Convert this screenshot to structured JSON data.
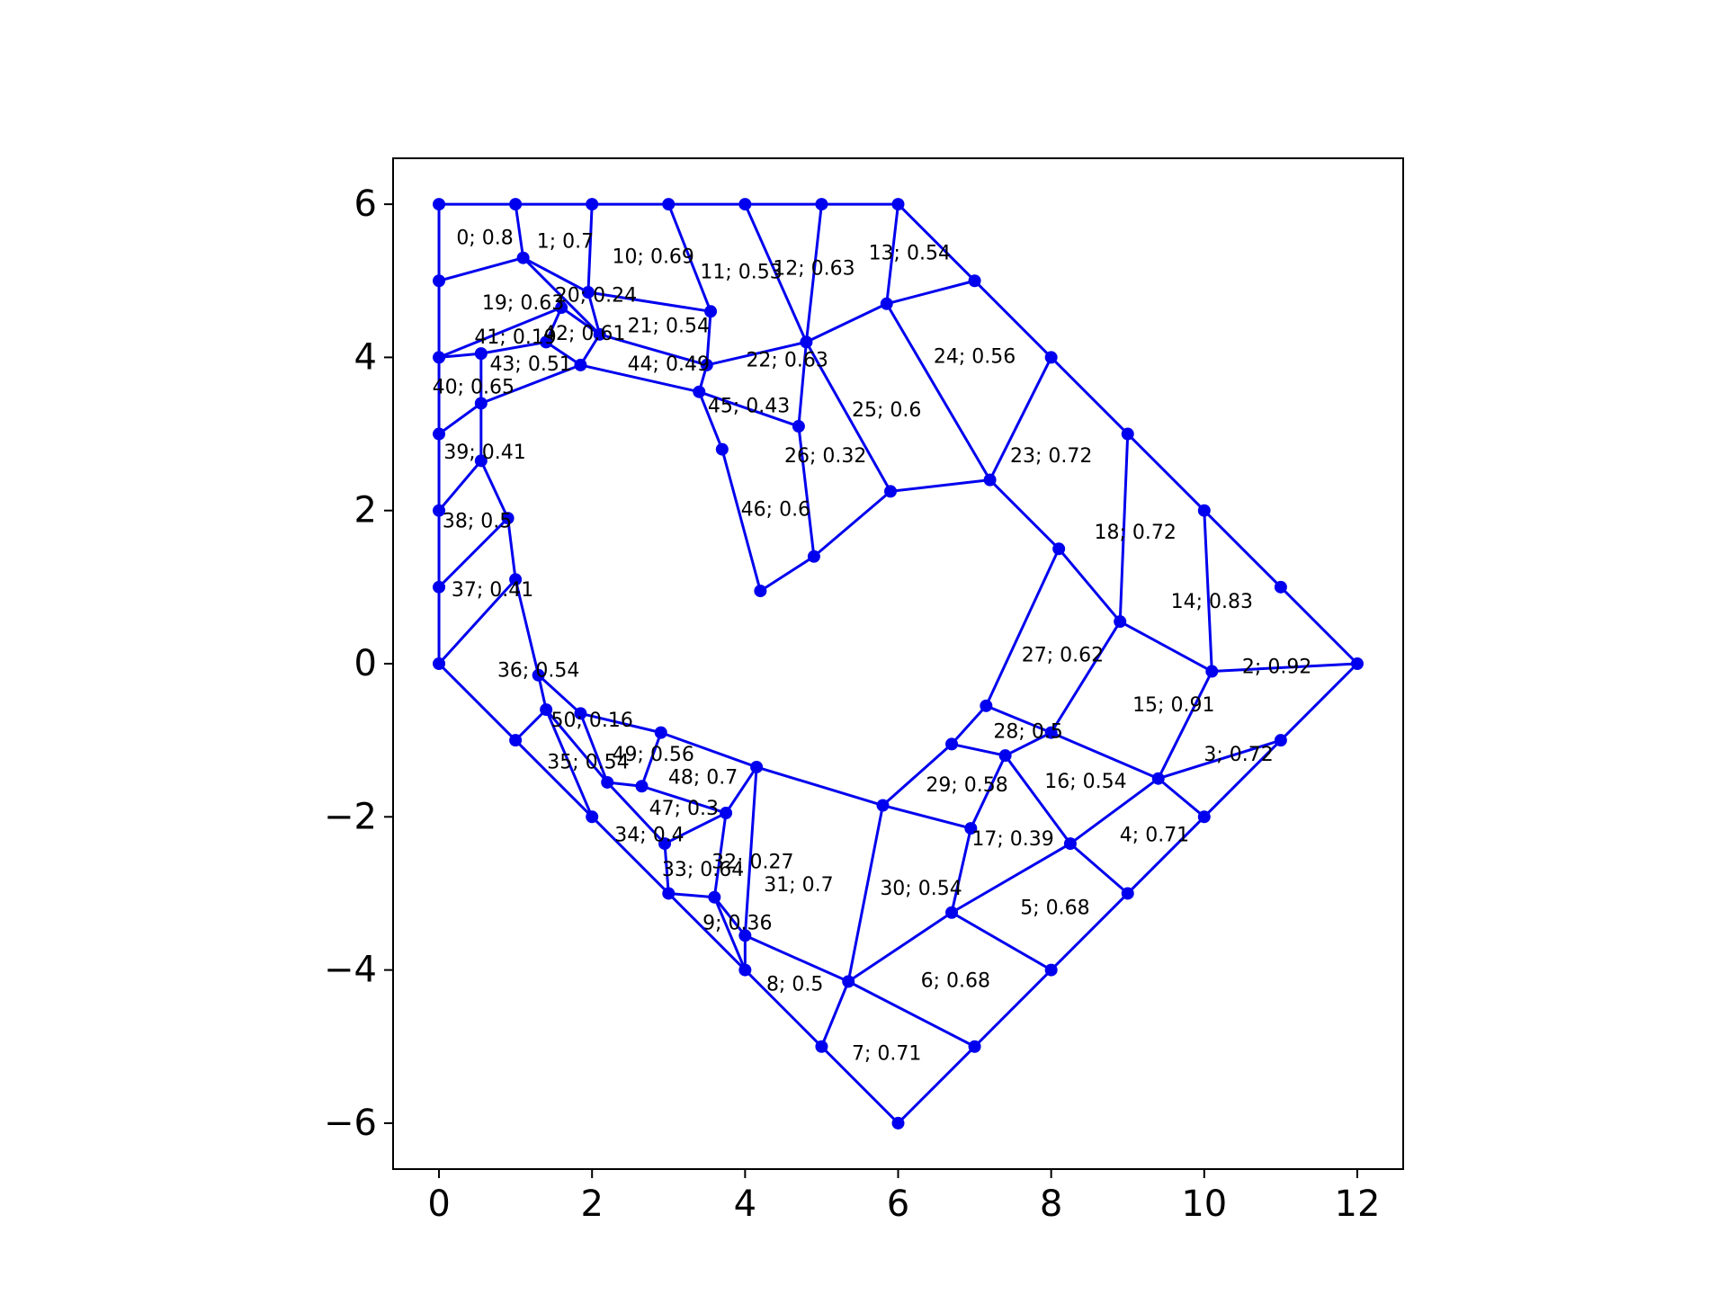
{
  "chart_data": {
    "type": "mesh",
    "title": "",
    "xlabel": "",
    "ylabel": "",
    "xlim": [
      -0.6,
      12.6
    ],
    "ylim": [
      -6.6,
      6.6
    ],
    "xticks": [
      {
        "value": 0,
        "label": "0"
      },
      {
        "value": 2,
        "label": "2"
      },
      {
        "value": 4,
        "label": "4"
      },
      {
        "value": 6,
        "label": "6"
      },
      {
        "value": 8,
        "label": "8"
      },
      {
        "value": 10,
        "label": "10"
      },
      {
        "value": 12,
        "label": "12"
      }
    ],
    "yticks": [
      {
        "value": -6,
        "label": "−6"
      },
      {
        "value": -4,
        "label": "−4"
      },
      {
        "value": -2,
        "label": "−2"
      },
      {
        "value": 0,
        "label": "0"
      },
      {
        "value": 2,
        "label": "2"
      },
      {
        "value": 4,
        "label": "4"
      },
      {
        "value": 6,
        "label": "6"
      }
    ],
    "grid": false,
    "colors": {
      "mesh": "#0000ee",
      "frame": "#000000",
      "text": "#000000"
    },
    "nodes": {
      "a1": [
        0,
        6
      ],
      "a2": [
        1,
        6
      ],
      "a3": [
        2,
        6
      ],
      "a4": [
        3,
        6
      ],
      "a5": [
        4,
        6
      ],
      "a6": [
        5,
        6
      ],
      "a7": [
        6,
        6
      ],
      "b1": [
        0,
        5
      ],
      "b2": [
        1.1,
        5.3
      ],
      "b3": [
        1.95,
        4.85
      ],
      "b4": [
        3.55,
        4.6
      ],
      "b5": [
        5.85,
        4.7
      ],
      "b6": [
        7,
        5
      ],
      "c1": [
        0,
        4
      ],
      "c2": [
        0.55,
        4.05
      ],
      "c3": [
        1.6,
        4.65
      ],
      "c4": [
        1.4,
        4.2
      ],
      "c5": [
        2.1,
        4.3
      ],
      "c6": [
        1.85,
        3.9
      ],
      "c7": [
        3.4,
        3.55
      ],
      "c8": [
        3.5,
        3.9
      ],
      "c9": [
        4.8,
        4.2
      ],
      "c10": [
        8,
        4
      ],
      "d1": [
        0,
        3
      ],
      "d2": [
        0.55,
        3.4
      ],
      "d3": [
        0.55,
        2.65
      ],
      "d4": [
        0,
        2
      ],
      "d5": [
        0.9,
        1.9
      ],
      "d6": [
        0,
        1
      ],
      "d7": [
        1,
        1.1
      ],
      "e1": [
        3.7,
        2.8
      ],
      "e2": [
        4.7,
        3.1
      ],
      "e3": [
        5.9,
        2.25
      ],
      "e4": [
        7.2,
        2.4
      ],
      "e5": [
        9,
        3
      ],
      "e6": [
        10,
        2
      ],
      "e7": [
        4.2,
        0.95
      ],
      "e8": [
        4.9,
        1.4
      ],
      "e9": [
        8.1,
        1.5
      ],
      "e10": [
        8.9,
        0.55
      ],
      "e11": [
        11,
        1
      ],
      "e12": [
        12,
        0
      ],
      "f1": [
        0,
        0
      ],
      "f2": [
        1.3,
        -0.15
      ],
      "f3": [
        10.1,
        -0.1
      ],
      "f4": [
        7.15,
        -0.55
      ],
      "g1": [
        1.4,
        -0.6
      ],
      "g2": [
        1.85,
        -0.65
      ],
      "g3": [
        2.9,
        -0.9
      ],
      "g4": [
        1,
        -1
      ],
      "g5": [
        6.7,
        -1.05
      ],
      "g6": [
        8,
        -0.9
      ],
      "g7": [
        7.4,
        -1.2
      ],
      "g8": [
        11,
        -1
      ],
      "g9": [
        4.15,
        -1.35
      ],
      "g10": [
        9.4,
        -1.5
      ],
      "h1": [
        2.2,
        -1.55
      ],
      "h2": [
        2.65,
        -1.6
      ],
      "h3": [
        3.75,
        -1.95
      ],
      "h4": [
        5.8,
        -1.85
      ],
      "h5": [
        6.95,
        -2.15
      ],
      "h6": [
        2,
        -2
      ],
      "h7": [
        10,
        -2
      ],
      "h8": [
        2.95,
        -2.35
      ],
      "h9": [
        8.25,
        -2.35
      ],
      "i1": [
        3,
        -3
      ],
      "i2": [
        3.6,
        -3.05
      ],
      "i3": [
        9,
        -3
      ],
      "i4": [
        6.7,
        -3.25
      ],
      "i5": [
        4,
        -3.55
      ],
      "j1": [
        4,
        -4
      ],
      "j2": [
        5.35,
        -4.15
      ],
      "j3": [
        8,
        -4
      ],
      "j4": [
        5,
        -5
      ],
      "j5": [
        7,
        -5
      ],
      "j6": [
        6,
        -6
      ]
    },
    "edges": [
      [
        "a1",
        "a2"
      ],
      [
        "a2",
        "a3"
      ],
      [
        "a3",
        "a4"
      ],
      [
        "a4",
        "a5"
      ],
      [
        "a5",
        "a6"
      ],
      [
        "a6",
        "a7"
      ],
      [
        "a7",
        "b6"
      ],
      [
        "b6",
        "c10"
      ],
      [
        "c10",
        "e5"
      ],
      [
        "e5",
        "e6"
      ],
      [
        "e6",
        "e11"
      ],
      [
        "e11",
        "e12"
      ],
      [
        "e12",
        "g8"
      ],
      [
        "g8",
        "h7"
      ],
      [
        "h7",
        "i3"
      ],
      [
        "i3",
        "j3"
      ],
      [
        "j3",
        "j5"
      ],
      [
        "j5",
        "j6"
      ],
      [
        "j6",
        "j4"
      ],
      [
        "j4",
        "j1"
      ],
      [
        "j1",
        "i1"
      ],
      [
        "i1",
        "h6"
      ],
      [
        "h6",
        "g4"
      ],
      [
        "g4",
        "f1"
      ],
      [
        "f1",
        "d6"
      ],
      [
        "d6",
        "d4"
      ],
      [
        "d4",
        "d1"
      ],
      [
        "d1",
        "c1"
      ],
      [
        "c1",
        "b1"
      ],
      [
        "b1",
        "a1"
      ],
      [
        "b1",
        "b2"
      ],
      [
        "b2",
        "a2"
      ],
      [
        "b2",
        "b3"
      ],
      [
        "b3",
        "a3"
      ],
      [
        "b3",
        "b4"
      ],
      [
        "b4",
        "a4"
      ],
      [
        "b4",
        "c8"
      ],
      [
        "c8",
        "c7"
      ],
      [
        "c7",
        "e1"
      ],
      [
        "e1",
        "e7"
      ],
      [
        "e7",
        "e8"
      ],
      [
        "e8",
        "e2"
      ],
      [
        "e2",
        "c7"
      ],
      [
        "e2",
        "c9"
      ],
      [
        "c9",
        "a6"
      ],
      [
        "c9",
        "b5"
      ],
      [
        "b5",
        "a7"
      ],
      [
        "b5",
        "b6"
      ],
      [
        "b5",
        "e4"
      ],
      [
        "e4",
        "c10"
      ],
      [
        "e4",
        "e3"
      ],
      [
        "e3",
        "c9"
      ],
      [
        "e3",
        "e8"
      ],
      [
        "c8",
        "c9"
      ],
      [
        "a5",
        "c9"
      ],
      [
        "b2",
        "c5"
      ],
      [
        "b3",
        "c5"
      ],
      [
        "c5",
        "c8"
      ],
      [
        "c5",
        "c6"
      ],
      [
        "c6",
        "c4"
      ],
      [
        "c4",
        "c3"
      ],
      [
        "c3",
        "c1"
      ],
      [
        "c3",
        "c5"
      ],
      [
        "c6",
        "c7"
      ],
      [
        "c4",
        "c2"
      ],
      [
        "c1",
        "c2"
      ],
      [
        "c2",
        "d2"
      ],
      [
        "c6",
        "d2"
      ],
      [
        "d2",
        "d1"
      ],
      [
        "d2",
        "d3"
      ],
      [
        "d3",
        "d4"
      ],
      [
        "d3",
        "d5"
      ],
      [
        "d5",
        "d6"
      ],
      [
        "d5",
        "d7"
      ],
      [
        "d7",
        "f1"
      ],
      [
        "d7",
        "f2"
      ],
      [
        "f2",
        "g1"
      ],
      [
        "f2",
        "g2"
      ],
      [
        "g1",
        "g4"
      ],
      [
        "g1",
        "h6"
      ],
      [
        "g2",
        "h1"
      ],
      [
        "g2",
        "g3"
      ],
      [
        "g3",
        "h2"
      ],
      [
        "h1",
        "h2"
      ],
      [
        "h1",
        "g1"
      ],
      [
        "h2",
        "h3"
      ],
      [
        "h3",
        "h8"
      ],
      [
        "h8",
        "h1"
      ],
      [
        "h8",
        "i1"
      ],
      [
        "i1",
        "i2"
      ],
      [
        "i2",
        "h3"
      ],
      [
        "i2",
        "j1"
      ],
      [
        "h3",
        "g9"
      ],
      [
        "g3",
        "g9"
      ],
      [
        "g9",
        "i5"
      ],
      [
        "i5",
        "i2"
      ],
      [
        "i5",
        "j1"
      ],
      [
        "i5",
        "j2"
      ],
      [
        "g9",
        "h4"
      ],
      [
        "h4",
        "j2"
      ],
      [
        "h4",
        "g5"
      ],
      [
        "g5",
        "f4"
      ],
      [
        "f4",
        "e9"
      ],
      [
        "e9",
        "e4"
      ],
      [
        "e9",
        "e10"
      ],
      [
        "e10",
        "e5"
      ],
      [
        "e10",
        "f3"
      ],
      [
        "f3",
        "e6"
      ],
      [
        "f3",
        "e12"
      ],
      [
        "e10",
        "g6"
      ],
      [
        "g6",
        "f4"
      ],
      [
        "g6",
        "g7"
      ],
      [
        "g7",
        "g5"
      ],
      [
        "g7",
        "h5"
      ],
      [
        "h5",
        "h4"
      ],
      [
        "h5",
        "i4"
      ],
      [
        "i4",
        "h9"
      ],
      [
        "h9",
        "g7"
      ],
      [
        "h9",
        "g10"
      ],
      [
        "g10",
        "g6"
      ],
      [
        "g10",
        "f3"
      ],
      [
        "g10",
        "g8"
      ],
      [
        "g10",
        "h7"
      ],
      [
        "h9",
        "i3"
      ],
      [
        "i4",
        "j3"
      ],
      [
        "i4",
        "j2"
      ],
      [
        "j2",
        "j5"
      ],
      [
        "j2",
        "j4"
      ]
    ],
    "labels": [
      {
        "text": "0; 0.8",
        "x": 0.6,
        "y": 5.55
      },
      {
        "text": "1; 0.7",
        "x": 1.65,
        "y": 5.5
      },
      {
        "text": "10; 0.69",
        "x": 2.8,
        "y": 5.3
      },
      {
        "text": "11; 0.53",
        "x": 3.95,
        "y": 5.1
      },
      {
        "text": "12; 0.63",
        "x": 4.9,
        "y": 5.15
      },
      {
        "text": "13; 0.54",
        "x": 6.15,
        "y": 5.35
      },
      {
        "text": "19; 0.63",
        "x": 1.1,
        "y": 4.7
      },
      {
        "text": "20; 0.24",
        "x": 2.05,
        "y": 4.8
      },
      {
        "text": "41; 0.19",
        "x": 1,
        "y": 4.25
      },
      {
        "text": "42; 0.61",
        "x": 1.9,
        "y": 4.3
      },
      {
        "text": "21; 0.54",
        "x": 3.0,
        "y": 4.4
      },
      {
        "text": "43; 0.51",
        "x": 1.2,
        "y": 3.9
      },
      {
        "text": "44; 0.49",
        "x": 3.0,
        "y": 3.9
      },
      {
        "text": "22; 0.63",
        "x": 4.55,
        "y": 3.95
      },
      {
        "text": "24; 0.56",
        "x": 7.0,
        "y": 4.0
      },
      {
        "text": "40; 0.65",
        "x": 0.45,
        "y": 3.6
      },
      {
        "text": "45; 0.43",
        "x": 4.05,
        "y": 3.35
      },
      {
        "text": "25; 0.6",
        "x": 5.85,
        "y": 3.3
      },
      {
        "text": "39; 0.41",
        "x": 0.6,
        "y": 2.75
      },
      {
        "text": "26; 0.32",
        "x": 5.05,
        "y": 2.7
      },
      {
        "text": "23; 0.72",
        "x": 8.0,
        "y": 2.7
      },
      {
        "text": "46; 0.6",
        "x": 4.4,
        "y": 2.0
      },
      {
        "text": "38; 0.5",
        "x": 0.5,
        "y": 1.85
      },
      {
        "text": "18; 0.72",
        "x": 9.1,
        "y": 1.7
      },
      {
        "text": "37; 0.41",
        "x": 0.7,
        "y": 0.95
      },
      {
        "text": "14; 0.83",
        "x": 10.1,
        "y": 0.8
      },
      {
        "text": "27; 0.62",
        "x": 8.15,
        "y": 0.1
      },
      {
        "text": "2; 0.92",
        "x": 10.95,
        "y": -0.05
      },
      {
        "text": "36; 0.54",
        "x": 1.3,
        "y": -0.1
      },
      {
        "text": "15; 0.91",
        "x": 9.6,
        "y": -0.55
      },
      {
        "text": "50; 0.16",
        "x": 2.0,
        "y": -0.75
      },
      {
        "text": "28; 0.5",
        "x": 7.7,
        "y": -0.9
      },
      {
        "text": "3; 0.72",
        "x": 10.45,
        "y": -1.2
      },
      {
        "text": "49; 0.56",
        "x": 2.8,
        "y": -1.2
      },
      {
        "text": "35; 0.54",
        "x": 1.95,
        "y": -1.3
      },
      {
        "text": "48; 0.7",
        "x": 3.45,
        "y": -1.5
      },
      {
        "text": "29; 0.58",
        "x": 6.9,
        "y": -1.6
      },
      {
        "text": "16; 0.54",
        "x": 8.45,
        "y": -1.55
      },
      {
        "text": "47; 0.3",
        "x": 3.2,
        "y": -1.9
      },
      {
        "text": "34; 0.4",
        "x": 2.75,
        "y": -2.25
      },
      {
        "text": "17; 0.39",
        "x": 7.5,
        "y": -2.3
      },
      {
        "text": "4; 0.71",
        "x": 9.35,
        "y": -2.25
      },
      {
        "text": "32; 0.27",
        "x": 4.1,
        "y": -2.6
      },
      {
        "text": "33; 0.64",
        "x": 3.45,
        "y": -2.7
      },
      {
        "text": "31; 0.7",
        "x": 4.7,
        "y": -2.9
      },
      {
        "text": "30; 0.54",
        "x": 6.3,
        "y": -2.95
      },
      {
        "text": "5; 0.68",
        "x": 8.05,
        "y": -3.2
      },
      {
        "text": "9; 0.36",
        "x": 3.9,
        "y": -3.4
      },
      {
        "text": "8; 0.5",
        "x": 4.65,
        "y": -4.2
      },
      {
        "text": "6; 0.68",
        "x": 6.75,
        "y": -4.15
      },
      {
        "text": "7; 0.71",
        "x": 5.85,
        "y": -5.1
      }
    ]
  }
}
